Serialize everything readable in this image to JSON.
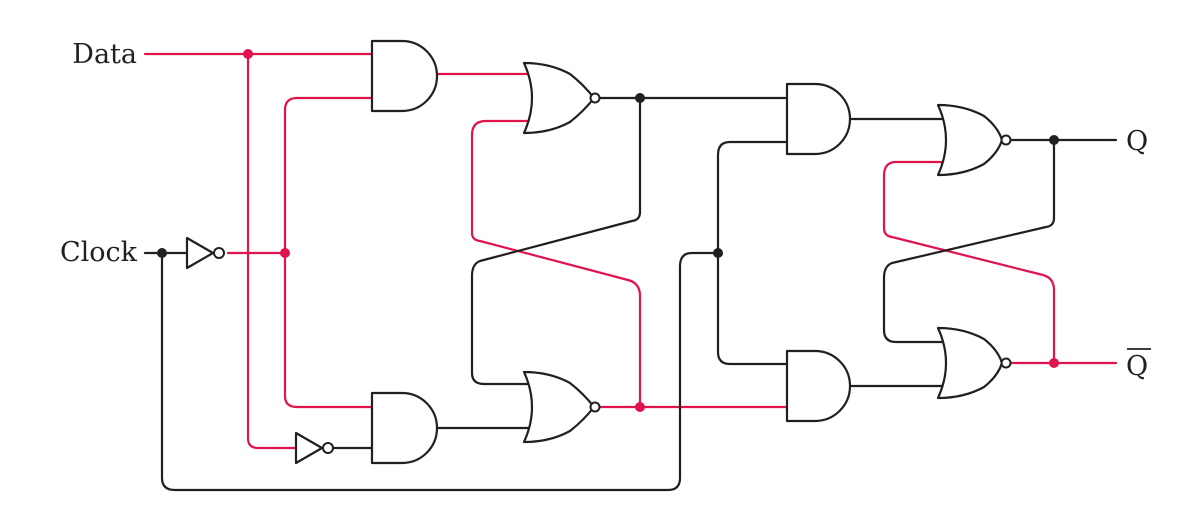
{
  "labels": {
    "data": "Data",
    "clock": "Clock",
    "q": "Q",
    "q_bar": "Q"
  },
  "colors": {
    "line": "#231f20",
    "active": "#e0144c",
    "background": "#ffffff"
  }
}
